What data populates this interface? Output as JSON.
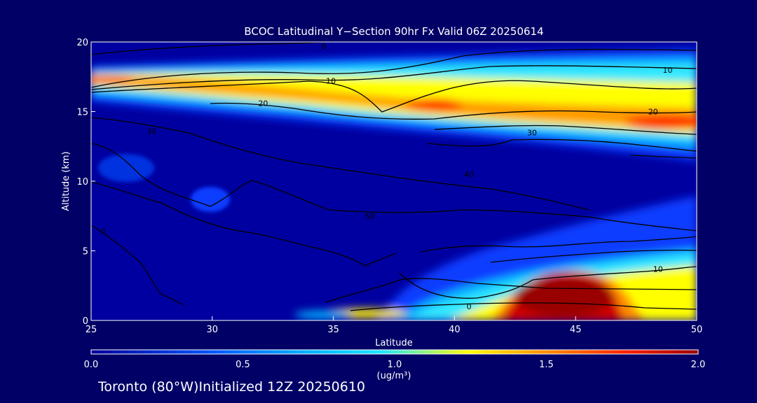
{
  "chart_data": {
    "type": "heatmap",
    "title": "BCOC Latitudinal Y−Section 90hr  Fx Valid 06Z 20250614",
    "xlabel": "Latitude",
    "ylabel": "Altitude (km)",
    "xlim": [
      25,
      50
    ],
    "ylim": [
      0,
      20
    ],
    "x_ticks": [
      25,
      30,
      35,
      40,
      45,
      50
    ],
    "y_ticks": [
      0,
      5,
      10,
      15,
      20
    ],
    "colorbar": {
      "range": [
        0.0,
        2.0
      ],
      "ticks": [
        "0.0",
        "0.5",
        "1.0",
        "1.5",
        "2.0"
      ],
      "label": "(ug/m³)",
      "colors": [
        "#000099",
        "#0055ff",
        "#00b4ff",
        "#22e6ff",
        "#ffff00",
        "#ff8c00",
        "#ff2000",
        "#990000"
      ]
    },
    "contour_labels": [
      {
        "text": "0",
        "x": 34.6,
        "y": 19.7
      },
      {
        "text": "10",
        "x": 34.9,
        "y": 17.2
      },
      {
        "text": "10",
        "x": 48.8,
        "y": 18.0
      },
      {
        "text": "20",
        "x": 32.1,
        "y": 15.6
      },
      {
        "text": "20",
        "x": 48.2,
        "y": 15.0
      },
      {
        "text": "30",
        "x": 27.5,
        "y": 13.6
      },
      {
        "text": "30",
        "x": 43.2,
        "y": 13.5
      },
      {
        "text": "0",
        "x": 40.6,
        "y": 1.0
      },
      {
        "text": "10",
        "x": 48.4,
        "y": 3.7
      },
      {
        "text": "40",
        "x": 40.6,
        "y": 10.5
      },
      {
        "text": "50",
        "x": 36.5,
        "y": 7.5
      },
      {
        "text": "0",
        "x": 25.5,
        "y": 6.4
      }
    ]
  },
  "footer": "Toronto (80°W)Initialized 12Z 20250610"
}
